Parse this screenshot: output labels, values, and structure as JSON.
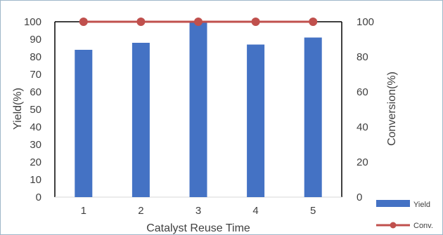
{
  "chart_data": {
    "type": "bar",
    "categories": [
      "1",
      "2",
      "3",
      "4",
      "5"
    ],
    "xlabel": "Catalyst Reuse Time",
    "series": [
      {
        "name": "Yield",
        "type": "bar",
        "axis": "left",
        "values": [
          84,
          88,
          100,
          87,
          91
        ],
        "color": "#4472c4"
      },
      {
        "name": "Conv.",
        "type": "line",
        "axis": "right",
        "values": [
          100,
          100,
          100,
          100,
          100
        ],
        "color": "#c0504d"
      }
    ],
    "y_left": {
      "label": "Yield(%)",
      "range": [
        0,
        100
      ],
      "ticks": [
        "0",
        "10",
        "20",
        "30",
        "40",
        "50",
        "60",
        "70",
        "80",
        "90",
        "100"
      ]
    },
    "y_right": {
      "label": "Conversion(%)",
      "range": [
        0,
        100
      ],
      "ticks": [
        "0",
        "20",
        "40",
        "60",
        "80",
        "100"
      ]
    },
    "grid": false,
    "legend_position": "bottom-right"
  }
}
